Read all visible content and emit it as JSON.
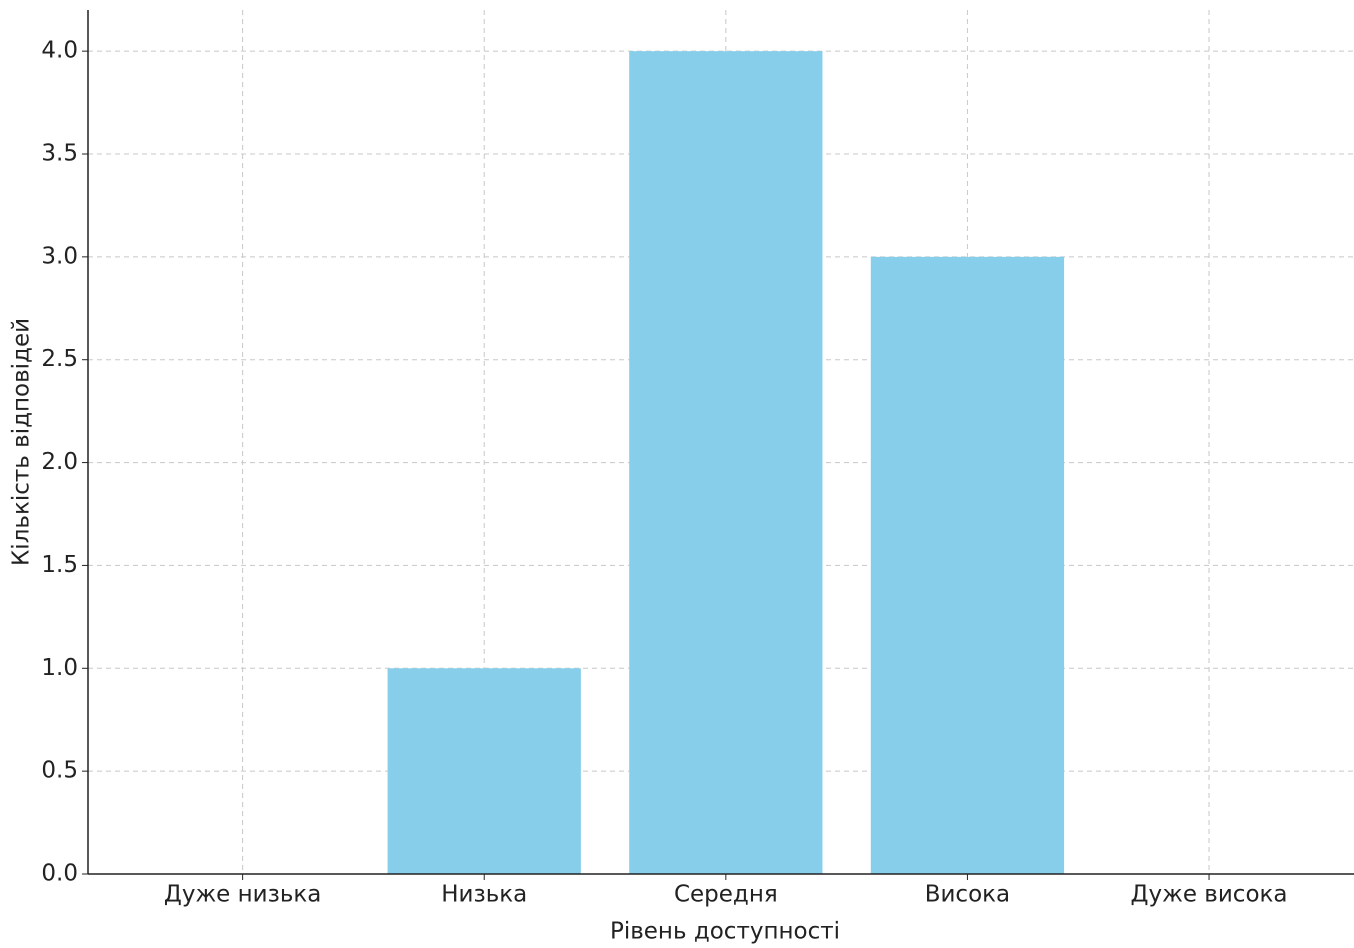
{
  "chart_data": {
    "type": "bar",
    "x_label": "Рівень доступності",
    "y_label": "Кількість відповідей",
    "categories": [
      "Дуже низька",
      "Низька",
      "Середня",
      "Висока",
      "Дуже висока"
    ],
    "values": [
      0,
      1,
      4,
      3,
      0
    ],
    "color": "#87ceeb",
    "ylim": [
      0,
      4.2
    ],
    "yticks": [
      {
        "value": 0,
        "label": "0.0"
      },
      {
        "value": 0.5,
        "label": "0.5"
      },
      {
        "value": 1,
        "label": "1.0"
      },
      {
        "value": 1.5,
        "label": "1.5"
      },
      {
        "value": 2,
        "label": "2.0"
      },
      {
        "value": 2.5,
        "label": "2.5"
      },
      {
        "value": 3,
        "label": "3.0"
      },
      {
        "value": 3.5,
        "label": "3.5"
      },
      {
        "value": 4,
        "label": "4.0"
      }
    ],
    "grid": true
  }
}
